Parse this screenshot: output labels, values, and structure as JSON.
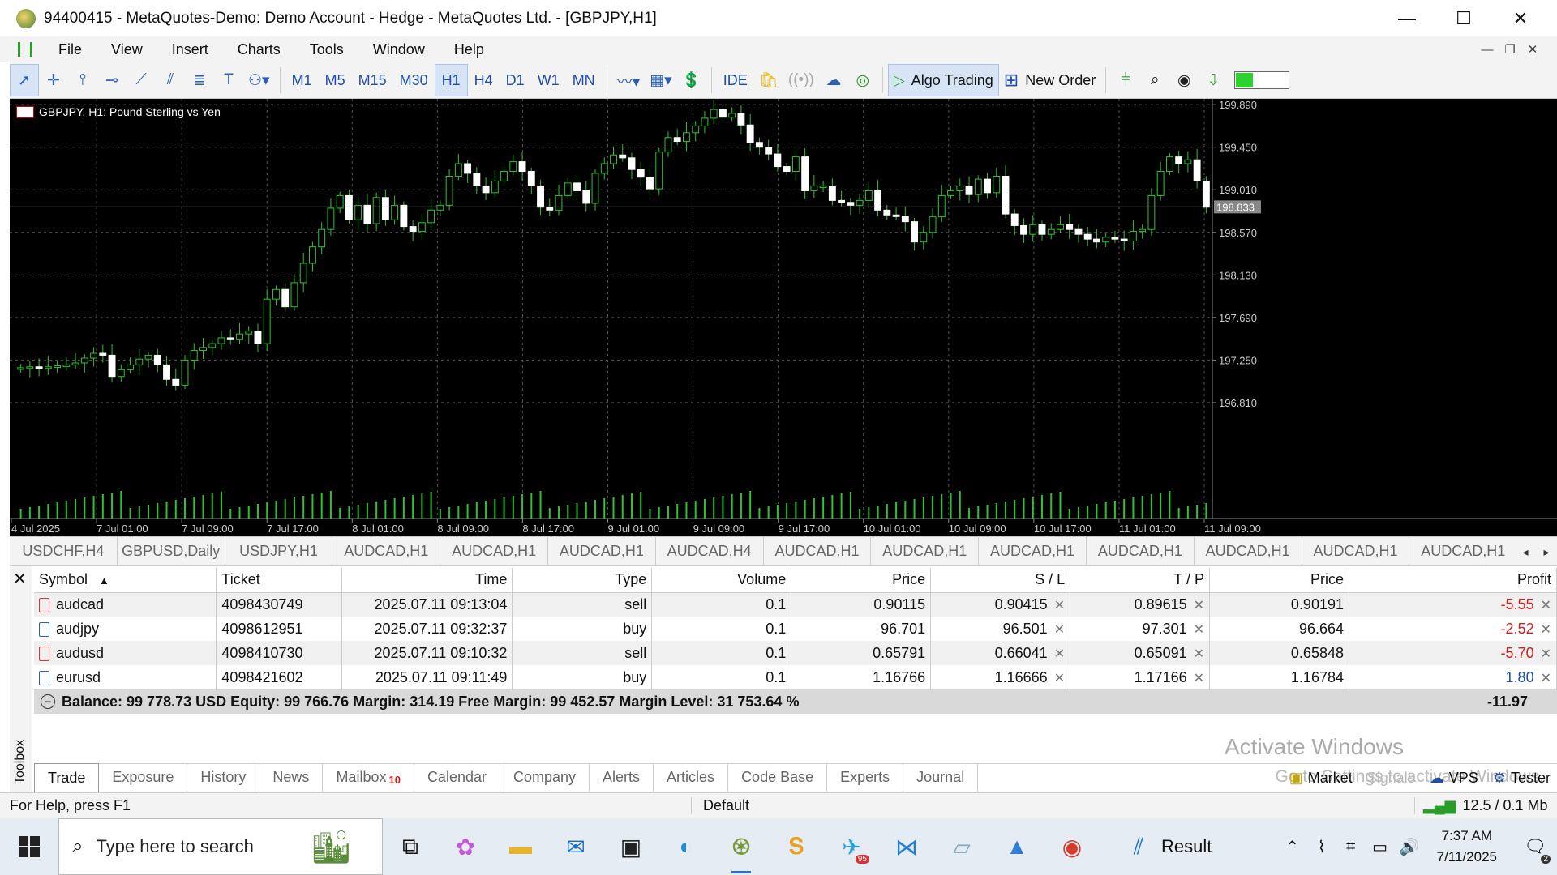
{
  "window": {
    "title": "94400415 - MetaQuotes-Demo: Demo Account - Hedge - MetaQuotes Ltd. - [GBPJPY,H1]",
    "controls": [
      "—",
      "☐",
      "✕"
    ]
  },
  "menu": {
    "items": [
      "File",
      "View",
      "Insert",
      "Charts",
      "Tools",
      "Window",
      "Help"
    ],
    "mdi_controls": [
      "—",
      "❐",
      "✕"
    ]
  },
  "toolbar": {
    "timeframes": [
      "M1",
      "M5",
      "M15",
      "M30",
      "H1",
      "H4",
      "D1",
      "W1",
      "MN"
    ],
    "selected_timeframe": "H1",
    "ide_label": "IDE",
    "algo_trading_label": "Algo Trading",
    "new_order_label": "New Order",
    "battery_level": 0.32
  },
  "chart": {
    "title": "GBPJPY, H1:  Pound Sterling vs Yen",
    "current_price": "198.833",
    "price_labels": [
      "199.890",
      "199.450",
      "199.010",
      "198.570",
      "198.130",
      "197.690",
      "197.250",
      "196.810"
    ],
    "time_labels": [
      "4 Jul 2025",
      "7 Jul 01:00",
      "7 Jul 09:00",
      "7 Jul 17:00",
      "8 Jul 01:00",
      "8 Jul 09:00",
      "8 Jul 17:00",
      "9 Jul 01:00",
      "9 Jul 09:00",
      "9 Jul 17:00",
      "10 Jul 01:00",
      "10 Jul 09:00",
      "10 Jul 17:00",
      "11 Jul 01:00",
      "11 Jul 09:00"
    ]
  },
  "chart_data": {
    "type": "candlestick",
    "symbol": "GBPJPY",
    "timeframe": "H1",
    "ylim": [
      196.6,
      199.95
    ],
    "closes": [
      197.17,
      197.18,
      197.17,
      197.18,
      197.19,
      197.2,
      197.22,
      197.27,
      197.32,
      197.3,
      197.08,
      197.15,
      197.2,
      197.26,
      197.3,
      197.2,
      197.05,
      196.99,
      197.25,
      197.35,
      197.38,
      197.42,
      197.48,
      197.46,
      197.52,
      197.55,
      197.42,
      197.88,
      197.98,
      197.8,
      198.05,
      198.25,
      198.42,
      198.6,
      198.82,
      198.95,
      198.7,
      198.85,
      198.66,
      198.93,
      198.7,
      198.85,
      198.63,
      198.58,
      198.67,
      198.8,
      198.85,
      199.15,
      199.28,
      199.18,
      199.05,
      198.98,
      199.1,
      199.2,
      199.3,
      199.2,
      199.05,
      198.83,
      198.8,
      198.95,
      199.08,
      199.0,
      198.87,
      199.18,
      199.28,
      199.37,
      199.34,
      199.22,
      199.14,
      199.02,
      199.4,
      199.55,
      199.51,
      199.6,
      199.67,
      199.75,
      199.84,
      199.76,
      199.8,
      199.68,
      199.5,
      199.45,
      199.38,
      199.25,
      199.2,
      199.35,
      199.0,
      199.05,
      199.05,
      198.9,
      198.88,
      198.85,
      198.9,
      199.0,
      198.8,
      198.75,
      198.74,
      198.68,
      198.47,
      198.57,
      198.73,
      198.95,
      199.0,
      199.05,
      198.96,
      199.12,
      198.98,
      199.15,
      198.76,
      198.64,
      198.55,
      198.65,
      198.55,
      198.6,
      198.65,
      198.6,
      198.55,
      198.5,
      198.47,
      198.52,
      198.5,
      198.48,
      198.58,
      198.6,
      198.95,
      199.2,
      199.35,
      199.28,
      199.32,
      199.1,
      198.83
    ],
    "current_price": 198.833
  },
  "symbol_tabs": [
    "USDCHF,H4",
    "GBPUSD,Daily",
    "USDJPY,H1",
    "AUDCAD,H1",
    "AUDCAD,H1",
    "AUDCAD,H1",
    "AUDCAD,H4",
    "AUDCAD,H1",
    "AUDCAD,H1",
    "AUDCAD,H1",
    "AUDCAD,H1",
    "AUDCAD,H1",
    "AUDCAD,H1",
    "AUDCAD,H1"
  ],
  "trade": {
    "headers": [
      "Symbol",
      "Ticket",
      "Time",
      "Type",
      "Volume",
      "Price",
      "S / L",
      "T / P",
      "Price",
      "Profit"
    ],
    "rows": [
      {
        "symbol": "audcad",
        "ticket": "4098430749",
        "time": "2025.07.11 09:13:04",
        "type": "sell",
        "volume": "0.1",
        "price": "0.90115",
        "sl": "0.90415",
        "tp": "0.89615",
        "cur": "0.90191",
        "profit": "-5.55"
      },
      {
        "symbol": "audjpy",
        "ticket": "4098612951",
        "time": "2025.07.11 09:32:37",
        "type": "buy",
        "volume": "0.1",
        "price": "96.701",
        "sl": "96.501",
        "tp": "97.301",
        "cur": "96.664",
        "profit": "-2.52"
      },
      {
        "symbol": "audusd",
        "ticket": "4098410730",
        "time": "2025.07.11 09:10:32",
        "type": "sell",
        "volume": "0.1",
        "price": "0.65791",
        "sl": "0.66041",
        "tp": "0.65091",
        "cur": "0.65848",
        "profit": "-5.70"
      },
      {
        "symbol": "eurusd",
        "ticket": "4098421602",
        "time": "2025.07.11 09:11:49",
        "type": "buy",
        "volume": "0.1",
        "price": "1.16766",
        "sl": "1.16666",
        "tp": "1.17166",
        "cur": "1.16784",
        "profit": "1.80"
      }
    ],
    "balance_line": "Balance: 99 778.73 USD  Equity: 99 766.76  Margin: 314.19  Free Margin: 99 452.57  Margin Level: 31 753.64 %",
    "total_profit": "-11.97"
  },
  "toolbox": {
    "label": "Toolbox",
    "tabs": [
      "Trade",
      "Exposure",
      "History",
      "News",
      "Mailbox",
      "Calendar",
      "Company",
      "Alerts",
      "Articles",
      "Code Base",
      "Experts",
      "Journal"
    ],
    "mailbox_count": "10",
    "right_items": [
      "Market",
      "Signals",
      "VPS",
      "Tester"
    ]
  },
  "watermark": {
    "line1": "Activate Windows",
    "line2": "Go to Settings to activate Windows."
  },
  "status": {
    "help": "For Help, press F1",
    "profile": "Default",
    "traffic": "12.5 / 0.1 Mb"
  },
  "taskbar": {
    "search_placeholder": "Type here to search",
    "result_label": "Result",
    "telegram_badge": "95",
    "time": "7:37 AM",
    "date": "7/11/2025",
    "notif_count": "2"
  }
}
